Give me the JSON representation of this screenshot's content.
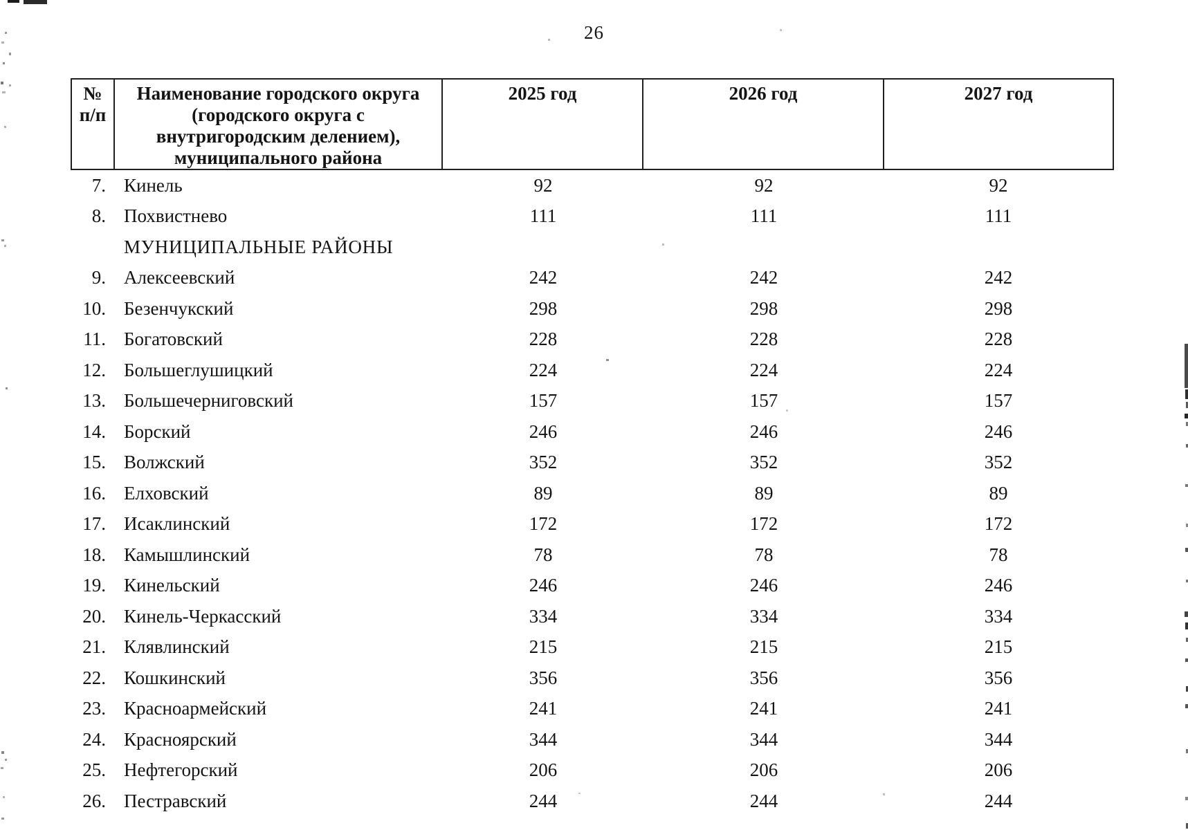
{
  "page": {
    "number": "26"
  },
  "table": {
    "headers": {
      "num": "№\nп/п",
      "name": "Наименование городского округа\n(городского округа с\nвнутригородским делением),\nмуниципального района",
      "y2025": "2025 год",
      "y2026": "2026 год",
      "y2027": "2027 год"
    },
    "rows": [
      {
        "num": "7.",
        "name": "Кинель",
        "values": [
          "92",
          "92",
          "92"
        ]
      },
      {
        "num": "8.",
        "name": "Похвистнево",
        "values": [
          "111",
          "111",
          "111"
        ]
      },
      {
        "section": true,
        "name": "МУНИЦИПАЛЬНЫЕ РАЙОНЫ"
      },
      {
        "num": "9.",
        "name": "Алексеевский",
        "values": [
          "242",
          "242",
          "242"
        ]
      },
      {
        "num": "10.",
        "name": "Безенчукский",
        "values": [
          "298",
          "298",
          "298"
        ]
      },
      {
        "num": "11.",
        "name": "Богатовский",
        "values": [
          "228",
          "228",
          "228"
        ]
      },
      {
        "num": "12.",
        "name": "Большеглушицкий",
        "values": [
          "224",
          "224",
          "224"
        ]
      },
      {
        "num": "13.",
        "name": "Большечерниговский",
        "values": [
          "157",
          "157",
          "157"
        ]
      },
      {
        "num": "14.",
        "name": "Борский",
        "values": [
          "246",
          "246",
          "246"
        ]
      },
      {
        "num": "15.",
        "name": "Волжский",
        "values": [
          "352",
          "352",
          "352"
        ]
      },
      {
        "num": "16.",
        "name": "Елховский",
        "values": [
          "89",
          "89",
          "89"
        ]
      },
      {
        "num": "17.",
        "name": "Исаклинский",
        "values": [
          "172",
          "172",
          "172"
        ]
      },
      {
        "num": "18.",
        "name": "Камышлинский",
        "values": [
          "78",
          "78",
          "78"
        ]
      },
      {
        "num": "19.",
        "name": "Кинельский",
        "values": [
          "246",
          "246",
          "246"
        ]
      },
      {
        "num": "20.",
        "name": "Кинель-Черкасский",
        "values": [
          "334",
          "334",
          "334"
        ]
      },
      {
        "num": "21.",
        "name": "Клявлинский",
        "values": [
          "215",
          "215",
          "215"
        ]
      },
      {
        "num": "22.",
        "name": "Кошкинский",
        "values": [
          "356",
          "356",
          "356"
        ]
      },
      {
        "num": "23.",
        "name": "Красноармейский",
        "values": [
          "241",
          "241",
          "241"
        ]
      },
      {
        "num": "24.",
        "name": "Красноярский",
        "values": [
          "344",
          "344",
          "344"
        ]
      },
      {
        "num": "25.",
        "name": "Нефтегорский",
        "values": [
          "206",
          "206",
          "206"
        ]
      },
      {
        "num": "26.",
        "name": "Пестравский",
        "values": [
          "244",
          "244",
          "244"
        ]
      }
    ]
  }
}
